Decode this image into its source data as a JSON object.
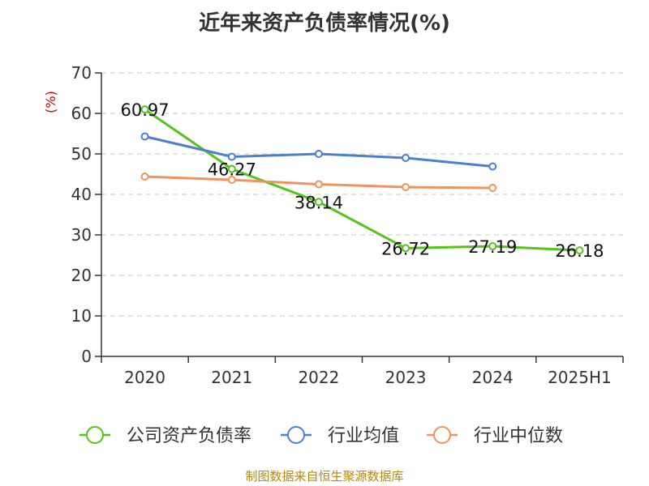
{
  "chart_data": {
    "type": "line",
    "title": "近年来资产负债率情况(%)",
    "ylabel": "(%)",
    "xlabel": "",
    "categories": [
      "2020",
      "2021",
      "2022",
      "2023",
      "2024",
      "2025H1"
    ],
    "ylim": [
      0,
      70
    ],
    "yticks": [
      0,
      10,
      20,
      30,
      40,
      50,
      60,
      70
    ],
    "grid": true,
    "legend_position": "bottom",
    "series": [
      {
        "name": "公司资产负债率",
        "color": "#52c41a",
        "values": [
          60.97,
          46.27,
          38.14,
          26.72,
          27.19,
          26.18
        ],
        "labels": [
          "60.97",
          "46.27",
          "38.14",
          "26.72",
          "27.19",
          "26.18"
        ]
      },
      {
        "name": "行业均值",
        "color": "#4a7fd4",
        "values": [
          54.3,
          49.3,
          50.0,
          49.0,
          46.9,
          null
        ]
      },
      {
        "name": "行业中位数",
        "color": "#f4925e",
        "values": [
          44.4,
          43.6,
          42.5,
          41.8,
          41.6,
          null
        ]
      }
    ]
  },
  "footer": {
    "source": "制图数据来自恒生聚源数据库"
  }
}
